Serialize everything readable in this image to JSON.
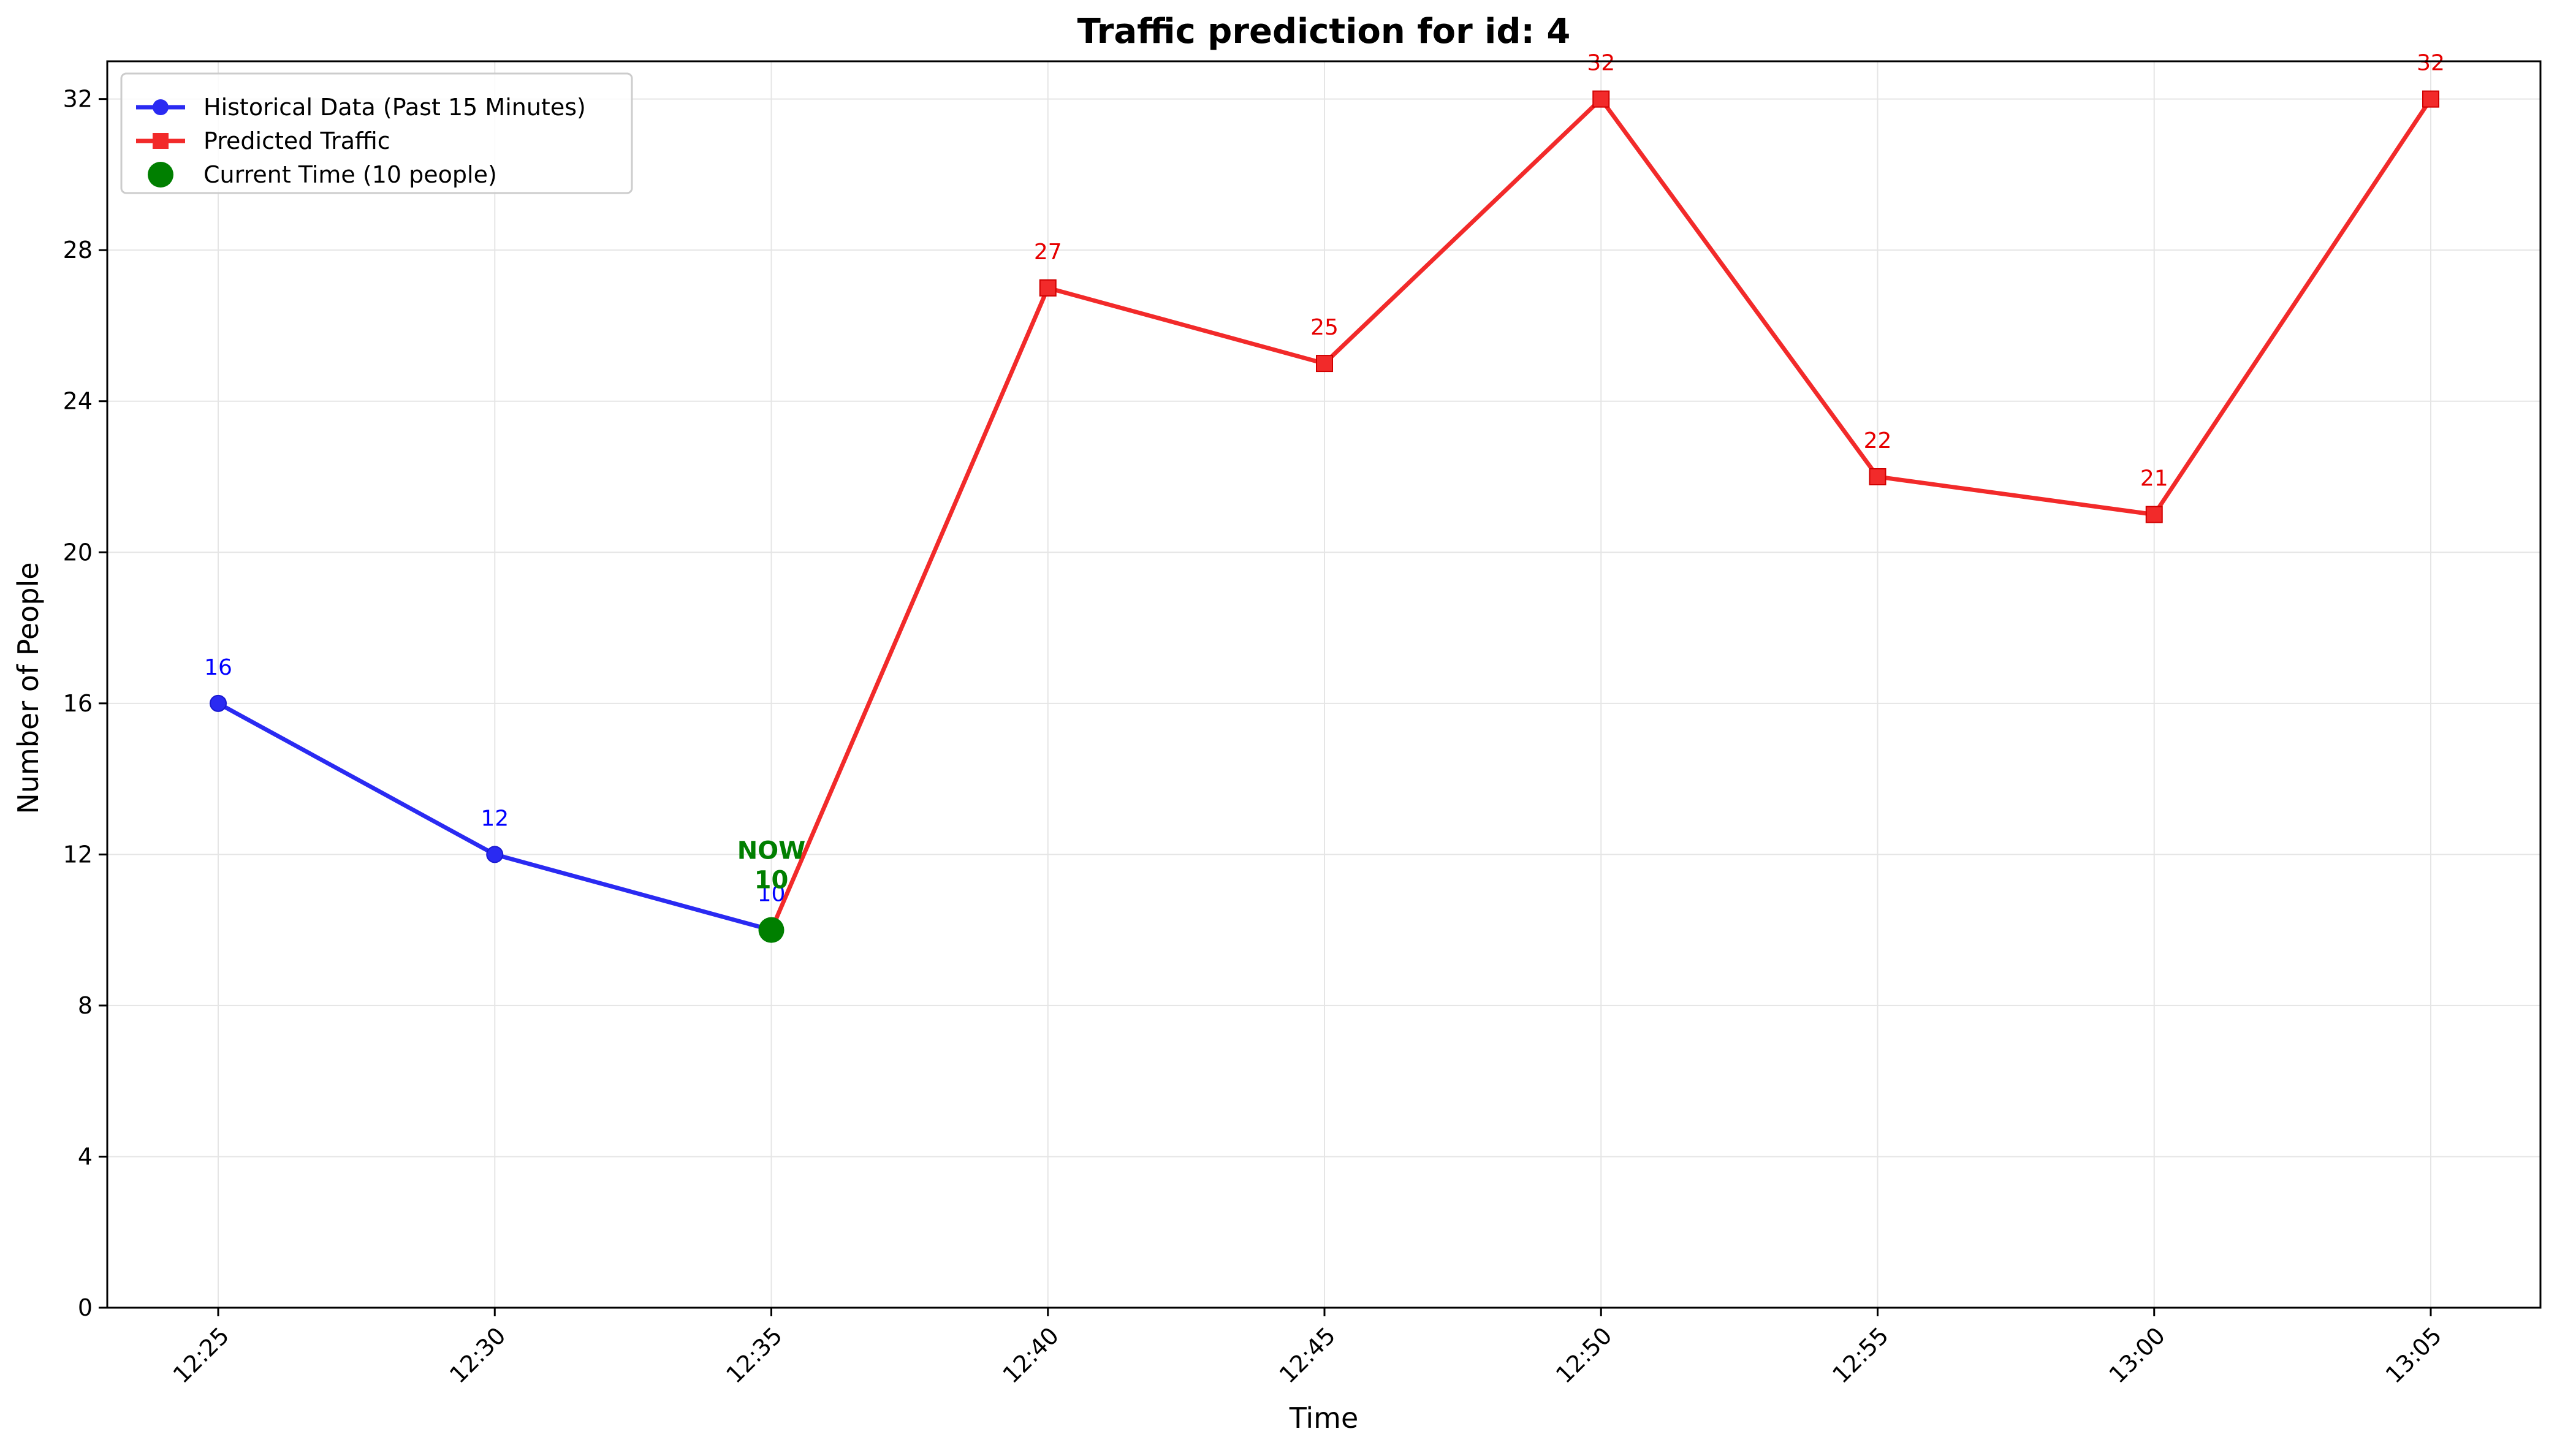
{
  "chart_data": {
    "type": "line",
    "title": "Traffic prediction for id: 4",
    "xlabel": "Time",
    "ylabel": "Number of People",
    "x_ticks": [
      "12:25",
      "12:30",
      "12:35",
      "12:40",
      "12:45",
      "12:50",
      "12:55",
      "13:00",
      "13:05"
    ],
    "y_ticks": [
      0,
      4,
      8,
      12,
      16,
      20,
      24,
      28,
      32
    ],
    "ylim": [
      0,
      33
    ],
    "grid": true,
    "legend_position": "top-left",
    "series": [
      {
        "name": "Historical Data (Past 15 Minutes)",
        "color": "#2a2af2",
        "marker": "circle",
        "x": [
          "12:25",
          "12:30",
          "12:35"
        ],
        "values": [
          16,
          12,
          10
        ]
      },
      {
        "name": "Predicted Traffic",
        "color": "#f22a2a",
        "marker": "square",
        "x": [
          "12:35",
          "12:40",
          "12:45",
          "12:50",
          "12:55",
          "13:00",
          "13:05"
        ],
        "values": [
          10,
          27,
          25,
          32,
          22,
          21,
          32
        ]
      },
      {
        "name": "Current Time (10 people)",
        "color": "#007f00",
        "marker": "big-circle",
        "x": [
          "12:35"
        ],
        "values": [
          10
        ]
      }
    ],
    "annotations": [
      {
        "text": "NOW",
        "x": "12:35",
        "y": 10,
        "color": "#007f00"
      },
      {
        "text": "10",
        "x": "12:35",
        "y": 10,
        "color": "#007f00"
      }
    ]
  }
}
